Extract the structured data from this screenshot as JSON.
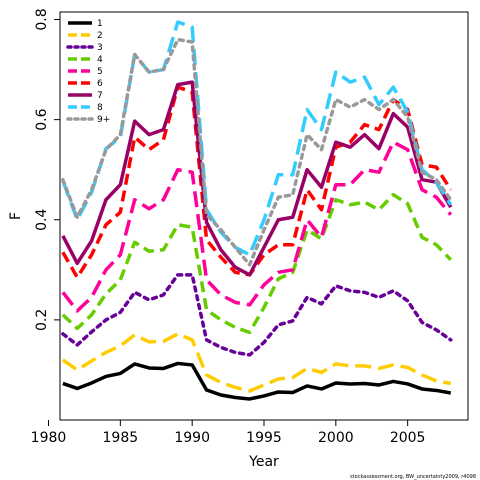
{
  "chart_data": {
    "type": "line",
    "xlabel": "Year",
    "ylabel": "F",
    "xlim": [
      1980.8,
      2009.2
    ],
    "ylim": [
      0.0,
      0.815
    ],
    "x_ticks": [
      1980,
      1985,
      1990,
      1995,
      2000,
      2005
    ],
    "y_ticks": [
      0.2,
      0.4,
      0.6,
      0.8
    ],
    "grid": false,
    "legend_position": "top-left",
    "footnote": "stockassessment.org, BW_uncertainty2009, r4098",
    "x": [
      1981,
      1982,
      1983,
      1984,
      1985,
      1986,
      1987,
      1988,
      1989,
      1990,
      1991,
      1992,
      1993,
      1994,
      1995,
      1996,
      1997,
      1998,
      1999,
      2000,
      2001,
      2002,
      2003,
      2004,
      2005,
      2006,
      2007,
      2008
    ],
    "series": [
      {
        "name": "1",
        "color": "#000000",
        "dash": "solid",
        "values": [
          0.073,
          0.063,
          0.074,
          0.087,
          0.093,
          0.112,
          0.104,
          0.103,
          0.113,
          0.11,
          0.06,
          0.05,
          0.045,
          0.042,
          0.048,
          0.056,
          0.055,
          0.068,
          0.062,
          0.074,
          0.072,
          0.073,
          0.07,
          0.077,
          0.072,
          0.062,
          0.059,
          0.054
        ]
      },
      {
        "name": "2",
        "color": "#FFCC00",
        "dash": "long",
        "values": [
          0.12,
          0.1,
          0.118,
          0.135,
          0.148,
          0.17,
          0.156,
          0.157,
          0.172,
          0.16,
          0.09,
          0.075,
          0.065,
          0.058,
          0.07,
          0.082,
          0.085,
          0.103,
          0.095,
          0.112,
          0.108,
          0.108,
          0.103,
          0.11,
          0.105,
          0.09,
          0.078,
          0.073
        ]
      },
      {
        "name": "3",
        "color": "#660099",
        "dash": "dot",
        "values": [
          0.172,
          0.15,
          0.176,
          0.2,
          0.215,
          0.255,
          0.24,
          0.25,
          0.29,
          0.29,
          0.16,
          0.145,
          0.135,
          0.13,
          0.155,
          0.19,
          0.198,
          0.245,
          0.232,
          0.268,
          0.258,
          0.255,
          0.245,
          0.258,
          0.238,
          0.195,
          0.18,
          0.16
        ]
      },
      {
        "name": "4",
        "color": "#66CC00",
        "dash": "dash",
        "values": [
          0.21,
          0.183,
          0.21,
          0.252,
          0.28,
          0.355,
          0.337,
          0.34,
          0.39,
          0.385,
          0.22,
          0.2,
          0.185,
          0.175,
          0.225,
          0.282,
          0.295,
          0.38,
          0.362,
          0.44,
          0.43,
          0.435,
          0.42,
          0.45,
          0.432,
          0.365,
          0.35,
          0.32
        ]
      },
      {
        "name": "5",
        "color": "#FF0099",
        "dash": "long",
        "values": [
          0.255,
          0.218,
          0.245,
          0.3,
          0.33,
          0.44,
          0.422,
          0.44,
          0.5,
          0.495,
          0.28,
          0.25,
          0.235,
          0.23,
          0.27,
          0.295,
          0.3,
          0.4,
          0.365,
          0.47,
          0.47,
          0.5,
          0.495,
          0.555,
          0.54,
          0.46,
          0.445,
          0.41
        ]
      },
      {
        "name": "6",
        "color": "#FF0000",
        "dash": "dash",
        "values": [
          0.335,
          0.285,
          0.33,
          0.39,
          0.415,
          0.565,
          0.54,
          0.56,
          0.665,
          0.655,
          0.36,
          0.325,
          0.295,
          0.29,
          0.33,
          0.35,
          0.35,
          0.46,
          0.42,
          0.545,
          0.555,
          0.59,
          0.58,
          0.64,
          0.62,
          0.51,
          0.505,
          0.46
        ]
      },
      {
        "name": "7",
        "color": "#990066",
        "dash": "solid",
        "values": [
          0.368,
          0.313,
          0.358,
          0.44,
          0.47,
          0.597,
          0.57,
          0.58,
          0.67,
          0.675,
          0.395,
          0.34,
          0.305,
          0.29,
          0.345,
          0.4,
          0.405,
          0.5,
          0.465,
          0.555,
          0.545,
          0.57,
          0.542,
          0.612,
          0.585,
          0.48,
          0.475,
          0.425
        ]
      },
      {
        "name": "8",
        "color": "#33CCFF",
        "dash": "long",
        "values": [
          0.478,
          0.4,
          0.455,
          0.542,
          0.565,
          0.73,
          0.695,
          0.7,
          0.795,
          0.785,
          0.42,
          0.375,
          0.345,
          0.33,
          0.4,
          0.49,
          0.49,
          0.62,
          0.58,
          0.695,
          0.675,
          0.685,
          0.63,
          0.665,
          0.615,
          0.5,
          0.475,
          0.43
        ]
      },
      {
        "name": "9+",
        "color": "#999999",
        "dash": "dot",
        "values": [
          0.48,
          0.405,
          0.46,
          0.54,
          0.57,
          0.73,
          0.695,
          0.7,
          0.76,
          0.755,
          0.41,
          0.38,
          0.345,
          0.31,
          0.38,
          0.445,
          0.45,
          0.57,
          0.54,
          0.64,
          0.625,
          0.64,
          0.62,
          0.64,
          0.605,
          0.495,
          0.48,
          0.44
        ]
      }
    ]
  }
}
